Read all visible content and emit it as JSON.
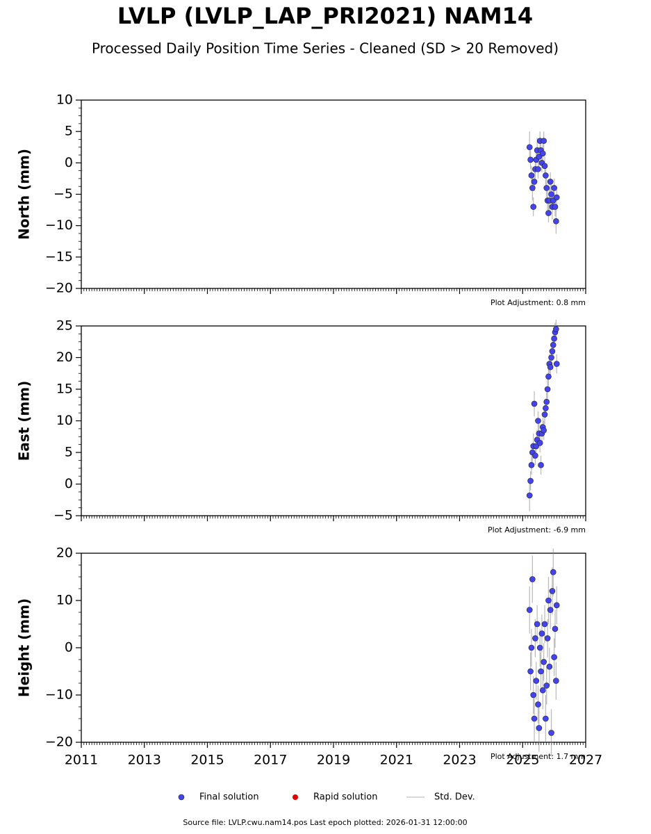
{
  "title": "LVLP (LVLP_LAP_PRI2021) NAM14",
  "subtitle": "Processed Daily Position Time Series - Cleaned (SD > 20 Removed)",
  "legend": [
    {
      "label": "Final solution",
      "color": "#4444ee"
    },
    {
      "label": "Rapid solution",
      "color": "#dd0000"
    },
    {
      "label": "Std. Dev.",
      "color": "#cccccc"
    }
  ],
  "footer": "Source file: LVLP.cwu.nam14.pos  Last epoch plotted: 2026-01-31 12:00:00",
  "chart_data": [
    {
      "type": "scatter",
      "ylabel": "North (mm)",
      "annotation": "Plot Adjustment: 0.8 mm",
      "xlim": [
        2011,
        2027
      ],
      "xticks": [
        2011,
        2013,
        2015,
        2017,
        2019,
        2021,
        2023,
        2025,
        2027
      ],
      "ylim": [
        -20,
        10
      ],
      "yticks": [
        {
          "value": -20,
          "label": "−20"
        },
        {
          "value": -15,
          "label": "−15"
        },
        {
          "value": -10,
          "label": "−10"
        },
        {
          "value": -5,
          "label": "−5"
        },
        0,
        5,
        10
      ],
      "color": "#4444ee",
      "x": [
        2025.22,
        2025.25,
        2025.28,
        2025.31,
        2025.34,
        2025.37,
        2025.4,
        2025.43,
        2025.46,
        2025.49,
        2025.52,
        2025.55,
        2025.58,
        2025.61,
        2025.64,
        2025.67,
        2025.7,
        2025.73,
        2025.76,
        2025.79,
        2025.82,
        2025.85,
        2025.88,
        2025.91,
        2025.94,
        2025.97,
        2026.0,
        2026.03,
        2026.06,
        2026.08
      ],
      "values": [
        2.5,
        0.5,
        -2,
        -4,
        -7,
        -3,
        -1,
        0.5,
        2,
        -1,
        1,
        3.5,
        2,
        0,
        1.5,
        3.5,
        -0.5,
        -2,
        -4,
        -6,
        -8,
        -6,
        -3,
        -5,
        -7,
        -6,
        -4,
        -7,
        -9.3,
        -5.5
      ],
      "errors": [
        2.5,
        1.5,
        1.5,
        2,
        1.5,
        1.5,
        1.5,
        1.5,
        2,
        1.5,
        1.5,
        1.5,
        1.5,
        1.5,
        1.5,
        1.5,
        1.5,
        1.5,
        1.5,
        1.5,
        1.5,
        2,
        1.5,
        1.5,
        2,
        1.5,
        1.5,
        1.5,
        2,
        1.5
      ]
    },
    {
      "type": "scatter",
      "ylabel": "East (mm)",
      "annotation": "Plot Adjustment: -6.9 mm",
      "xlim": [
        2011,
        2027
      ],
      "xticks": [
        2011,
        2013,
        2015,
        2017,
        2019,
        2021,
        2023,
        2025,
        2027
      ],
      "ylim": [
        -5,
        25
      ],
      "yticks": [
        {
          "value": -5,
          "label": "−5"
        },
        0,
        5,
        10,
        15,
        20,
        25
      ],
      "color": "#4444ee",
      "x": [
        2025.22,
        2025.25,
        2025.28,
        2025.31,
        2025.34,
        2025.37,
        2025.4,
        2025.43,
        2025.46,
        2025.49,
        2025.52,
        2025.55,
        2025.58,
        2025.61,
        2025.64,
        2025.67,
        2025.7,
        2025.73,
        2025.76,
        2025.79,
        2025.82,
        2025.85,
        2025.88,
        2025.91,
        2025.94,
        2025.97,
        2026.0,
        2026.03,
        2026.06,
        2026.08
      ],
      "values": [
        -1.8,
        0.5,
        3,
        5,
        6,
        12.7,
        4.5,
        6,
        7,
        10,
        8,
        6.5,
        3,
        8,
        9,
        8.5,
        11,
        12,
        13,
        15,
        17,
        19,
        18.5,
        20,
        21,
        22,
        23,
        24,
        24.5,
        19
      ],
      "errors": [
        2.5,
        1.5,
        1.5,
        1.5,
        2,
        2,
        1.5,
        1.5,
        1.5,
        1.5,
        1.5,
        1.5,
        1.5,
        1.5,
        1.5,
        1.5,
        1.5,
        1.5,
        1.5,
        1.5,
        1.5,
        1.5,
        1.5,
        1.5,
        1.5,
        1.5,
        1.5,
        1.5,
        1.5,
        1.5
      ]
    },
    {
      "type": "scatter",
      "ylabel": "Height (mm)",
      "annotation": "Plot Adjustment: 1.7 mm",
      "xlim": [
        2011,
        2027
      ],
      "xticks": [
        2011,
        2013,
        2015,
        2017,
        2019,
        2021,
        2023,
        2025,
        2027
      ],
      "ylim": [
        -20,
        20
      ],
      "yticks": [
        {
          "value": -20,
          "label": "−20"
        },
        {
          "value": -10,
          "label": "−10"
        },
        0,
        10,
        20
      ],
      "color": "#4444ee",
      "xtick_labels": true,
      "x": [
        2025.22,
        2025.25,
        2025.28,
        2025.31,
        2025.34,
        2025.37,
        2025.4,
        2025.43,
        2025.46,
        2025.49,
        2025.52,
        2025.55,
        2025.58,
        2025.61,
        2025.64,
        2025.67,
        2025.7,
        2025.73,
        2025.76,
        2025.79,
        2025.82,
        2025.85,
        2025.88,
        2025.91,
        2025.94,
        2025.97,
        2026.0,
        2026.03,
        2026.06,
        2026.08
      ],
      "values": [
        8,
        -5,
        0,
        14.5,
        -10,
        -15,
        2,
        -7,
        5,
        -12,
        -17,
        0,
        -5,
        3,
        -9,
        -3,
        5,
        -15,
        -8,
        2,
        10,
        -4,
        8,
        -18,
        12,
        16,
        -2,
        4,
        -7,
        9
      ],
      "errors": [
        5,
        4,
        4,
        5,
        4,
        5,
        4,
        4,
        4,
        4,
        5,
        4,
        4,
        4,
        4,
        4,
        4,
        5,
        4,
        4,
        5,
        4,
        4,
        5,
        5,
        5,
        4,
        4,
        4,
        4
      ]
    }
  ]
}
